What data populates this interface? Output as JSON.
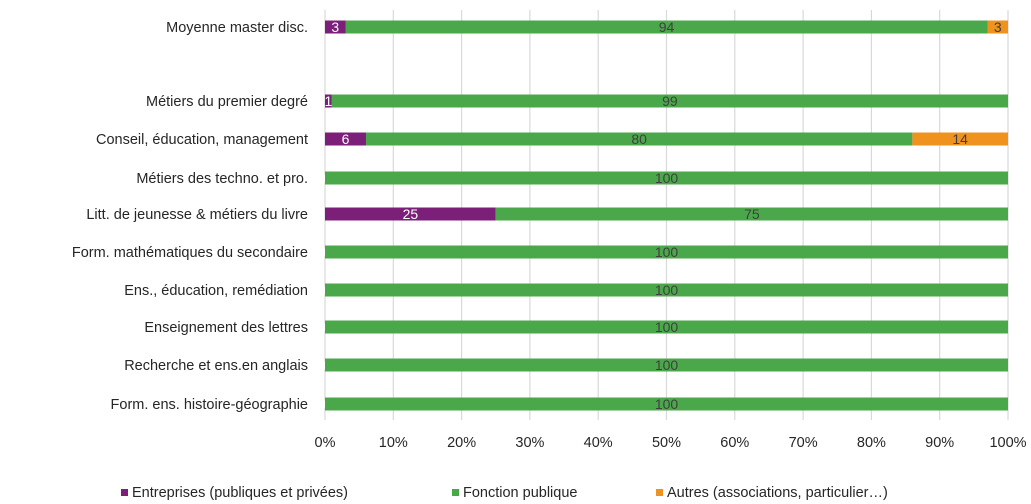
{
  "chart_data": {
    "type": "bar",
    "orientation": "horizontal",
    "stacked": true,
    "percent": true,
    "title": "",
    "xlabel": "",
    "ylabel": "",
    "xlim": [
      0,
      100
    ],
    "grid": true,
    "legend_position": "bottom",
    "x_ticks": [
      "0%",
      "10%",
      "20%",
      "30%",
      "40%",
      "50%",
      "60%",
      "70%",
      "80%",
      "90%",
      "100%"
    ],
    "categories": [
      "Moyenne master disc.",
      "Métiers du premier degré",
      "Conseil, éducation, management",
      "Métiers des techno. et pro.",
      "Litt. de jeunesse & métiers du livre",
      "Form. mathématiques du secondaire",
      "Ens., éducation, remédiation",
      "Enseignement des lettres",
      "Recherche et ens.en anglais",
      "Form. ens. histoire-géographie"
    ],
    "series": [
      {
        "name": "Entreprises (publiques et privées)",
        "color": "#7b1f78",
        "values": [
          3,
          1,
          6,
          0,
          25,
          0,
          0,
          0,
          0,
          0
        ],
        "labels": [
          "3",
          "1",
          "6",
          "0",
          "25",
          "0",
          "0",
          "0",
          "0",
          "0"
        ],
        "label_color": "#ffffff"
      },
      {
        "name": "Fonction publique",
        "color": "#4aa84a",
        "values": [
          94,
          99,
          80,
          100,
          75,
          100,
          100,
          100,
          100,
          100
        ],
        "labels": [
          "94",
          "99",
          "80",
          "100",
          "75",
          "100",
          "100",
          "100",
          "100",
          "100"
        ],
        "label_color": "#404040"
      },
      {
        "name": "Autres (associations, particulier…)",
        "color": "#f0921e",
        "values": [
          3,
          0,
          14,
          0,
          0,
          0,
          0,
          0,
          0,
          0
        ],
        "labels": [
          "3",
          "",
          "14",
          "",
          "",
          "",
          "",
          "",
          "",
          ""
        ],
        "label_color": "#404040"
      }
    ]
  }
}
